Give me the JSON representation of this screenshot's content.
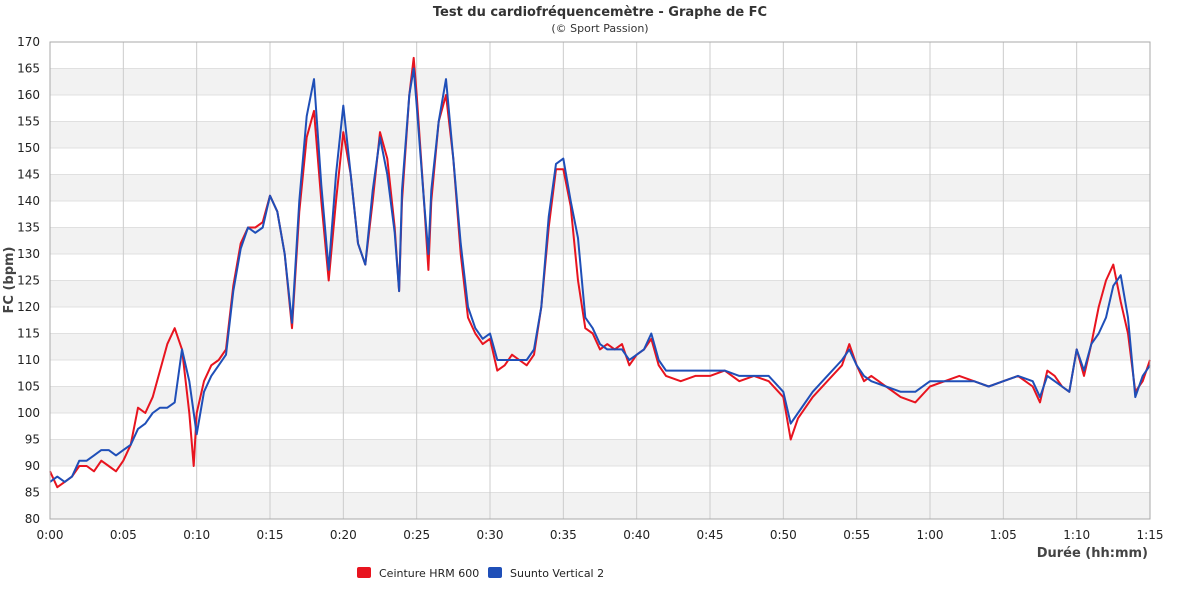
{
  "chart_data": {
    "type": "line",
    "title": "Test du cardiofréquencemètre - Graphe de FC",
    "subtitle": "(© Sport Passion)",
    "xlabel": "Durée (hh:mm)",
    "ylabel": "FC (bpm)",
    "xlim": [
      0,
      75
    ],
    "ylim": [
      80,
      170
    ],
    "grid": true,
    "legend_position": "bottom-left",
    "x_ticks": [
      "0:00",
      "0:05",
      "0:10",
      "0:15",
      "0:20",
      "0:25",
      "0:30",
      "0:35",
      "0:40",
      "0:45",
      "0:50",
      "0:55",
      "1:00",
      "1:05",
      "1:10",
      "1:15"
    ],
    "y_ticks": [
      "80",
      "85",
      "90",
      "95",
      "100",
      "105",
      "110",
      "115",
      "120",
      "125",
      "130",
      "135",
      "140",
      "145",
      "150",
      "155",
      "160",
      "165",
      "170"
    ],
    "x_unit": "minutes",
    "series": [
      {
        "name": "Ceinture HRM 600",
        "color": "#e8141f",
        "points": [
          [
            0,
            89
          ],
          [
            0.5,
            86
          ],
          [
            1,
            87
          ],
          [
            1.5,
            88
          ],
          [
            2,
            90
          ],
          [
            2.5,
            90
          ],
          [
            3,
            89
          ],
          [
            3.5,
            91
          ],
          [
            4,
            90
          ],
          [
            4.5,
            89
          ],
          [
            5,
            91
          ],
          [
            5.5,
            94
          ],
          [
            6,
            101
          ],
          [
            6.5,
            100
          ],
          [
            7,
            103
          ],
          [
            7.5,
            108
          ],
          [
            8,
            113
          ],
          [
            8.5,
            116
          ],
          [
            9,
            112
          ],
          [
            9.5,
            100
          ],
          [
            9.8,
            90
          ],
          [
            10,
            100
          ],
          [
            10.5,
            106
          ],
          [
            11,
            109
          ],
          [
            11.5,
            110
          ],
          [
            12,
            112
          ],
          [
            12.5,
            124
          ],
          [
            13,
            132
          ],
          [
            13.5,
            135
          ],
          [
            14,
            135
          ],
          [
            14.5,
            136
          ],
          [
            15,
            141
          ],
          [
            15.5,
            138
          ],
          [
            16,
            130
          ],
          [
            16.5,
            116
          ],
          [
            17,
            138
          ],
          [
            17.5,
            152
          ],
          [
            18,
            157
          ],
          [
            18.5,
            140
          ],
          [
            19,
            125
          ],
          [
            19.5,
            140
          ],
          [
            20,
            153
          ],
          [
            20.5,
            145
          ],
          [
            21,
            132
          ],
          [
            21.5,
            128
          ],
          [
            22,
            140
          ],
          [
            22.5,
            153
          ],
          [
            23,
            148
          ],
          [
            23.5,
            135
          ],
          [
            23.8,
            123
          ],
          [
            24,
            140
          ],
          [
            24.5,
            160
          ],
          [
            24.8,
            167
          ],
          [
            25,
            160
          ],
          [
            25.5,
            140
          ],
          [
            25.8,
            127
          ],
          [
            26,
            140
          ],
          [
            26.5,
            155
          ],
          [
            27,
            160
          ],
          [
            27.5,
            148
          ],
          [
            28,
            130
          ],
          [
            28.5,
            118
          ],
          [
            29,
            115
          ],
          [
            29.5,
            113
          ],
          [
            30,
            114
          ],
          [
            30.5,
            108
          ],
          [
            31,
            109
          ],
          [
            31.5,
            111
          ],
          [
            32,
            110
          ],
          [
            32.5,
            109
          ],
          [
            33,
            111
          ],
          [
            33.5,
            120
          ],
          [
            34,
            135
          ],
          [
            34.5,
            146
          ],
          [
            35,
            146
          ],
          [
            35.5,
            139
          ],
          [
            36,
            125
          ],
          [
            36.5,
            116
          ],
          [
            37,
            115
          ],
          [
            37.5,
            112
          ],
          [
            38,
            113
          ],
          [
            38.5,
            112
          ],
          [
            39,
            113
          ],
          [
            39.5,
            109
          ],
          [
            40,
            111
          ],
          [
            40.5,
            112
          ],
          [
            41,
            114
          ],
          [
            41.5,
            109
          ],
          [
            42,
            107
          ],
          [
            43,
            106
          ],
          [
            44,
            107
          ],
          [
            45,
            107
          ],
          [
            46,
            108
          ],
          [
            47,
            106
          ],
          [
            48,
            107
          ],
          [
            49,
            106
          ],
          [
            50,
            103
          ],
          [
            50.5,
            95
          ],
          [
            51,
            99
          ],
          [
            52,
            103
          ],
          [
            53,
            106
          ],
          [
            54,
            109
          ],
          [
            54.5,
            113
          ],
          [
            55,
            109
          ],
          [
            55.5,
            106
          ],
          [
            56,
            107
          ],
          [
            57,
            105
          ],
          [
            58,
            103
          ],
          [
            59,
            102
          ],
          [
            60,
            105
          ],
          [
            61,
            106
          ],
          [
            62,
            107
          ],
          [
            63,
            106
          ],
          [
            64,
            105
          ],
          [
            65,
            106
          ],
          [
            66,
            107
          ],
          [
            67,
            105
          ],
          [
            67.5,
            102
          ],
          [
            68,
            108
          ],
          [
            68.5,
            107
          ],
          [
            69,
            105
          ],
          [
            69.5,
            104
          ],
          [
            70,
            112
          ],
          [
            70.5,
            107
          ],
          [
            71,
            113
          ],
          [
            71.5,
            120
          ],
          [
            72,
            125
          ],
          [
            72.5,
            128
          ],
          [
            73,
            121
          ],
          [
            73.5,
            115
          ],
          [
            74,
            104
          ],
          [
            74.5,
            106
          ],
          [
            75,
            110
          ]
        ]
      },
      {
        "name": "Suunto Vertical 2",
        "color": "#1f4fb8",
        "points": [
          [
            0,
            87
          ],
          [
            0.5,
            88
          ],
          [
            1,
            87
          ],
          [
            1.5,
            88
          ],
          [
            2,
            91
          ],
          [
            2.5,
            91
          ],
          [
            3,
            92
          ],
          [
            3.5,
            93
          ],
          [
            4,
            93
          ],
          [
            4.5,
            92
          ],
          [
            5,
            93
          ],
          [
            5.5,
            94
          ],
          [
            6,
            97
          ],
          [
            6.5,
            98
          ],
          [
            7,
            100
          ],
          [
            7.5,
            101
          ],
          [
            8,
            101
          ],
          [
            8.5,
            102
          ],
          [
            9,
            112
          ],
          [
            9.5,
            106
          ],
          [
            10,
            96
          ],
          [
            10.5,
            104
          ],
          [
            11,
            107
          ],
          [
            11.5,
            109
          ],
          [
            12,
            111
          ],
          [
            12.5,
            123
          ],
          [
            13,
            131
          ],
          [
            13.5,
            135
          ],
          [
            14,
            134
          ],
          [
            14.5,
            135
          ],
          [
            15,
            141
          ],
          [
            15.5,
            138
          ],
          [
            16,
            130
          ],
          [
            16.5,
            117
          ],
          [
            17,
            140
          ],
          [
            17.5,
            156
          ],
          [
            18,
            163
          ],
          [
            18.5,
            143
          ],
          [
            19,
            127
          ],
          [
            19.5,
            145
          ],
          [
            20,
            158
          ],
          [
            20.5,
            145
          ],
          [
            21,
            132
          ],
          [
            21.5,
            128
          ],
          [
            22,
            142
          ],
          [
            22.5,
            152
          ],
          [
            23,
            145
          ],
          [
            23.5,
            134
          ],
          [
            23.8,
            123
          ],
          [
            24,
            142
          ],
          [
            24.5,
            160
          ],
          [
            24.8,
            165
          ],
          [
            25,
            158
          ],
          [
            25.5,
            140
          ],
          [
            25.8,
            130
          ],
          [
            26,
            142
          ],
          [
            26.5,
            155
          ],
          [
            27,
            163
          ],
          [
            27.5,
            148
          ],
          [
            28,
            132
          ],
          [
            28.5,
            120
          ],
          [
            29,
            116
          ],
          [
            29.5,
            114
          ],
          [
            30,
            115
          ],
          [
            30.5,
            110
          ],
          [
            31,
            110
          ],
          [
            31.5,
            110
          ],
          [
            32,
            110
          ],
          [
            32.5,
            110
          ],
          [
            33,
            112
          ],
          [
            33.5,
            120
          ],
          [
            34,
            137
          ],
          [
            34.5,
            147
          ],
          [
            35,
            148
          ],
          [
            35.5,
            140
          ],
          [
            36,
            133
          ],
          [
            36.5,
            118
          ],
          [
            37,
            116
          ],
          [
            37.5,
            113
          ],
          [
            38,
            112
          ],
          [
            38.5,
            112
          ],
          [
            39,
            112
          ],
          [
            39.5,
            110
          ],
          [
            40,
            111
          ],
          [
            40.5,
            112
          ],
          [
            41,
            115
          ],
          [
            41.5,
            110
          ],
          [
            42,
            108
          ],
          [
            43,
            108
          ],
          [
            44,
            108
          ],
          [
            45,
            108
          ],
          [
            46,
            108
          ],
          [
            47,
            107
          ],
          [
            48,
            107
          ],
          [
            49,
            107
          ],
          [
            50,
            104
          ],
          [
            50.5,
            98
          ],
          [
            51,
            100
          ],
          [
            52,
            104
          ],
          [
            53,
            107
          ],
          [
            54,
            110
          ],
          [
            54.5,
            112
          ],
          [
            55,
            109
          ],
          [
            55.5,
            107
          ],
          [
            56,
            106
          ],
          [
            57,
            105
          ],
          [
            58,
            104
          ],
          [
            59,
            104
          ],
          [
            60,
            106
          ],
          [
            61,
            106
          ],
          [
            62,
            106
          ],
          [
            63,
            106
          ],
          [
            64,
            105
          ],
          [
            65,
            106
          ],
          [
            66,
            107
          ],
          [
            67,
            106
          ],
          [
            67.5,
            103
          ],
          [
            68,
            107
          ],
          [
            68.5,
            106
          ],
          [
            69,
            105
          ],
          [
            69.5,
            104
          ],
          [
            70,
            112
          ],
          [
            70.5,
            108
          ],
          [
            71,
            113
          ],
          [
            71.5,
            115
          ],
          [
            72,
            118
          ],
          [
            72.5,
            124
          ],
          [
            73,
            126
          ],
          [
            73.5,
            118
          ],
          [
            74,
            103
          ],
          [
            74.5,
            107
          ],
          [
            75,
            109
          ]
        ]
      }
    ]
  }
}
